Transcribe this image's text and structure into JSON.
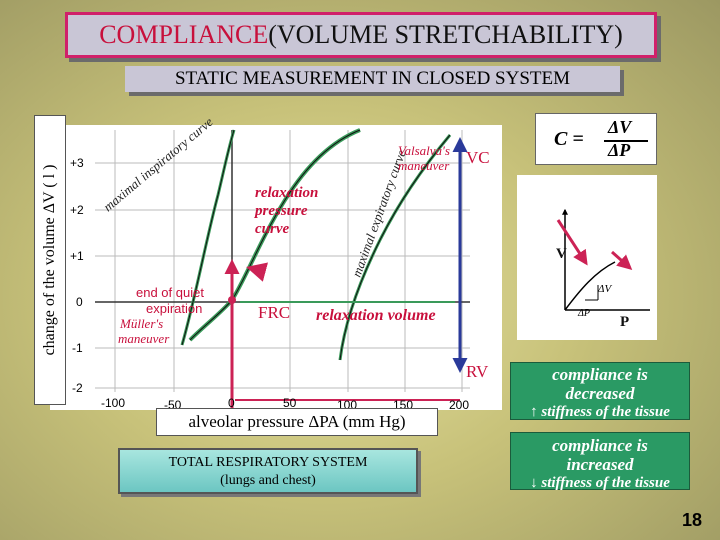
{
  "title": {
    "red": "COMPLIANCE",
    "black": " (VOLUME STRETCHABILITY)"
  },
  "subtitle": "STATIC MEASUREMENT IN CLOSED SYSTEM",
  "y_axis_label": "change of the volume ΔV ( l )",
  "x_axis_label": "alveolar pressure ΔPA (mm Hg)",
  "y_ticks": [
    "+3",
    "+2",
    "+1",
    "0",
    "-1",
    "-2"
  ],
  "x_ticks": [
    "-100",
    "-50",
    "0",
    "50",
    "100",
    "150",
    "200"
  ],
  "curve_labels": {
    "max_insp": "maximal inspiratory curve",
    "max_exp": "maximal expiratory curve",
    "relaxation": [
      "relaxation",
      "pressure",
      "curve"
    ],
    "valsalva": [
      "Valsalva's",
      "maneuver"
    ],
    "end_quiet": [
      "end of quiet",
      "expiration"
    ],
    "muller": [
      "Müller's",
      "maneuver"
    ],
    "frc": "FRC",
    "relaxation_volume": "relaxation volume",
    "vc": "VC",
    "rv": "RV"
  },
  "formula": {
    "c": "C =",
    "num": "ΔV",
    "den": "ΔP"
  },
  "mini_graph": {
    "v": "V",
    "p": "P",
    "dv": "ΔV",
    "dp": "ΔP"
  },
  "total_system": {
    "line1": "TOTAL RESPIRATORY  SYSTEM",
    "line2": "(lungs and chest)"
  },
  "decreased": {
    "line1": "compliance is",
    "line2": "decreased",
    "line3": "↑ stiffness of the tissue"
  },
  "increased": {
    "line1": "compliance is",
    "line2": "increased",
    "line3": "↓ stiffness of the tissue"
  },
  "page_number": "18",
  "colors": {
    "title_border": "#d0206a",
    "title_red": "#c8103c",
    "curve_green": "#3a9a5a",
    "arrow_red": "#cc2255",
    "vc_blue": "#2a3a9a",
    "box_green": "#2a9a64"
  }
}
